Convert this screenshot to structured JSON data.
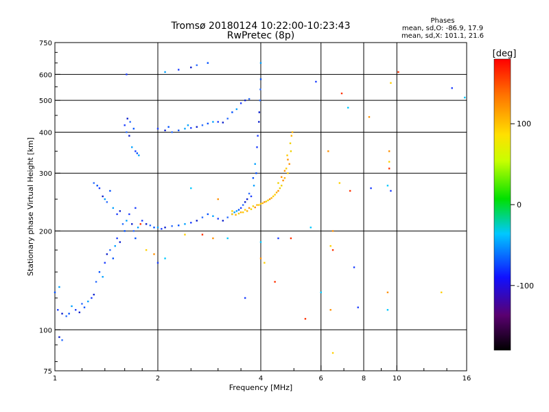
{
  "chart_data": {
    "type": "scatter",
    "title_line1": "Tromsø 20180124 10:22:00-10:23:43",
    "title_line2": "RwPretec (8p)",
    "xlabel": "Frequency [MHz]",
    "ylabel": "Stationary phase Virtual Height [km]",
    "x_scale": "log",
    "y_scale": "log",
    "xlim": [
      1,
      16
    ],
    "ylim": [
      75,
      750
    ],
    "x_ticks": [
      1,
      2,
      4,
      6,
      8,
      10,
      16
    ],
    "x_minor_ticks": [
      1.2,
      1.4,
      1.6,
      1.8,
      2.5,
      3,
      3.5,
      5,
      7,
      9,
      12,
      14
    ],
    "y_ticks": [
      75,
      100,
      200,
      300,
      400,
      500,
      600,
      750
    ],
    "y_minor_ticks": [
      80,
      90,
      125,
      150,
      175,
      250,
      350,
      450,
      550,
      650,
      700
    ],
    "grid": true,
    "grid_x": [
      2,
      4,
      6,
      8,
      10
    ],
    "grid_y": [
      100,
      200,
      300,
      400,
      500,
      600
    ],
    "legend": {
      "title": "Phases",
      "line1": "mean, sd,O: -86.9, 17.9",
      "line2": "mean, sd,X: 101.1, 21.6"
    },
    "colorbar": {
      "label": "[deg]",
      "range": [
        -180,
        180
      ],
      "ticks": [
        100,
        0,
        -100
      ],
      "colormap": "rainbow"
    },
    "series": [
      {
        "name": "O",
        "points": [
          [
            1.02,
            115
          ],
          [
            1.05,
            112
          ],
          [
            1.08,
            110
          ],
          [
            1.1,
            112
          ],
          [
            1.12,
            118
          ],
          [
            1.15,
            115
          ],
          [
            1.18,
            113
          ],
          [
            1.2,
            120
          ],
          [
            1.22,
            117
          ],
          [
            1.25,
            122
          ],
          [
            1.28,
            125
          ],
          [
            1.3,
            128
          ],
          [
            1.32,
            140
          ],
          [
            1.35,
            150
          ],
          [
            1.38,
            145
          ],
          [
            1.4,
            160
          ],
          [
            1.42,
            170
          ],
          [
            1.45,
            175
          ],
          [
            1.48,
            165
          ],
          [
            1.5,
            180
          ],
          [
            1.52,
            190
          ],
          [
            1.55,
            185
          ],
          [
            1.58,
            210
          ],
          [
            1.6,
            200
          ],
          [
            1.62,
            215
          ],
          [
            1.65,
            225
          ],
          [
            1.68,
            210
          ],
          [
            1.7,
            200
          ],
          [
            1.72,
            190
          ],
          [
            1.75,
            205
          ],
          [
            1.35,
            270
          ],
          [
            1.38,
            255
          ],
          [
            1.42,
            245
          ],
          [
            1.45,
            265
          ],
          [
            1.48,
            235
          ],
          [
            1.52,
            225
          ],
          [
            1.55,
            230
          ],
          [
            1.3,
            280
          ],
          [
            1.33,
            275
          ],
          [
            1.4,
            250
          ],
          [
            1.6,
            420
          ],
          [
            1.63,
            440
          ],
          [
            1.66,
            430
          ],
          [
            1.7,
            410
          ],
          [
            1.68,
            360
          ],
          [
            1.72,
            350
          ],
          [
            1.65,
            390
          ],
          [
            1.62,
            400
          ],
          [
            1.74,
            345
          ],
          [
            1.76,
            340
          ],
          [
            1.8,
            215
          ],
          [
            1.85,
            210
          ],
          [
            1.9,
            208
          ],
          [
            1.95,
            205
          ],
          [
            2.0,
            205
          ],
          [
            2.05,
            203
          ],
          [
            2.1,
            205
          ],
          [
            2.2,
            207
          ],
          [
            2.3,
            208
          ],
          [
            2.4,
            210
          ],
          [
            2.5,
            212
          ],
          [
            2.6,
            215
          ],
          [
            2.7,
            220
          ],
          [
            2.8,
            225
          ],
          [
            2.9,
            222
          ],
          [
            3.0,
            218
          ],
          [
            3.1,
            215
          ],
          [
            3.2,
            220
          ],
          [
            3.3,
            225
          ],
          [
            3.4,
            230
          ],
          [
            3.5,
            235
          ],
          [
            3.6,
            245
          ],
          [
            3.7,
            260
          ],
          [
            3.8,
            290
          ],
          [
            3.85,
            320
          ],
          [
            3.9,
            360
          ],
          [
            3.95,
            430
          ],
          [
            3.98,
            500
          ],
          [
            4.0,
            580
          ],
          [
            4.0,
            650
          ],
          [
            3.92,
            390
          ],
          [
            3.96,
            460
          ],
          [
            3.99,
            540
          ],
          [
            3.88,
            300
          ],
          [
            3.82,
            275
          ],
          [
            3.75,
            255
          ],
          [
            3.65,
            250
          ],
          [
            3.55,
            240
          ],
          [
            3.45,
            232
          ],
          [
            3.35,
            228
          ],
          [
            2.0,
            410
          ],
          [
            2.1,
            405
          ],
          [
            2.2,
            400
          ],
          [
            2.3,
            405
          ],
          [
            2.4,
            410
          ],
          [
            2.5,
            412
          ],
          [
            2.6,
            415
          ],
          [
            2.7,
            420
          ],
          [
            2.8,
            425
          ],
          [
            2.9,
            430
          ],
          [
            3.0,
            430
          ],
          [
            3.1,
            428
          ],
          [
            3.2,
            440
          ],
          [
            3.3,
            460
          ],
          [
            3.4,
            470
          ],
          [
            3.5,
            490
          ],
          [
            3.6,
            500
          ],
          [
            3.7,
            505
          ],
          [
            2.15,
            415
          ],
          [
            2.45,
            420
          ],
          [
            2.3,
            620
          ],
          [
            2.5,
            630
          ],
          [
            2.6,
            640
          ],
          [
            2.8,
            650
          ],
          [
            2.1,
            610
          ],
          [
            1.62,
            600
          ],
          [
            1.03,
            95
          ],
          [
            1.05,
            93
          ],
          [
            1.0,
            130
          ],
          [
            1.03,
            135
          ]
        ]
      },
      {
        "name": "X",
        "points": [
          [
            3.5,
            228
          ],
          [
            3.6,
            232
          ],
          [
            3.7,
            235
          ],
          [
            3.8,
            238
          ],
          [
            3.9,
            240
          ],
          [
            4.0,
            242
          ],
          [
            4.1,
            245
          ],
          [
            4.2,
            248
          ],
          [
            4.3,
            252
          ],
          [
            4.4,
            258
          ],
          [
            4.5,
            265
          ],
          [
            4.6,
            275
          ],
          [
            4.7,
            290
          ],
          [
            4.8,
            300
          ],
          [
            4.85,
            320
          ],
          [
            4.9,
            350
          ],
          [
            4.95,
            400
          ],
          [
            4.75,
            310
          ],
          [
            4.65,
            285
          ],
          [
            4.55,
            270
          ],
          [
            4.45,
            262
          ],
          [
            4.35,
            255
          ],
          [
            4.25,
            250
          ],
          [
            4.15,
            246
          ],
          [
            4.05,
            243
          ],
          [
            3.95,
            240
          ],
          [
            3.85,
            236
          ],
          [
            3.75,
            233
          ],
          [
            3.65,
            230
          ],
          [
            3.55,
            228
          ],
          [
            4.8,
            330
          ],
          [
            4.88,
            370
          ],
          [
            4.92,
            390
          ],
          [
            4.78,
            340
          ],
          [
            4.7,
            305
          ],
          [
            3.45,
            226
          ],
          [
            3.38,
            224
          ],
          [
            3.3,
            225
          ],
          [
            4.6,
            292
          ],
          [
            4.5,
            280
          ]
        ]
      },
      {
        "name": "scattered",
        "points": [
          [
            5.8,
            570
          ],
          [
            7.2,
            475
          ],
          [
            8.3,
            445
          ],
          [
            9.6,
            565
          ],
          [
            10.1,
            610
          ],
          [
            14.5,
            545
          ],
          [
            15.8,
            510
          ],
          [
            6.3,
            350
          ],
          [
            6.8,
            280
          ],
          [
            7.3,
            265
          ],
          [
            8.4,
            270
          ],
          [
            9.4,
            275
          ],
          [
            9.5,
            350
          ],
          [
            9.5,
            325
          ],
          [
            9.5,
            310
          ],
          [
            9.6,
            265
          ],
          [
            5.6,
            205
          ],
          [
            6.5,
            200
          ],
          [
            6.4,
            180
          ],
          [
            6.5,
            175
          ],
          [
            7.5,
            155
          ],
          [
            6.0,
            130
          ],
          [
            6.4,
            115
          ],
          [
            6.5,
            85
          ],
          [
            5.4,
            108
          ],
          [
            7.7,
            117
          ],
          [
            9.4,
            115
          ],
          [
            9.4,
            130
          ],
          [
            13.5,
            130
          ],
          [
            4.9,
            190
          ],
          [
            4.5,
            190
          ],
          [
            4.0,
            185
          ],
          [
            4.0,
            165
          ],
          [
            4.1,
            160
          ],
          [
            4.4,
            140
          ],
          [
            3.6,
            125
          ],
          [
            3.2,
            190
          ],
          [
            2.9,
            190
          ],
          [
            2.4,
            195
          ],
          [
            2.7,
            195
          ],
          [
            2.0,
            160
          ],
          [
            2.1,
            165
          ],
          [
            1.95,
            170
          ],
          [
            1.85,
            175
          ],
          [
            1.78,
            210
          ],
          [
            1.72,
            235
          ],
          [
            2.5,
            270
          ],
          [
            3.0,
            250
          ],
          [
            3.3,
            230
          ],
          [
            6.9,
            525
          ]
        ]
      }
    ]
  }
}
